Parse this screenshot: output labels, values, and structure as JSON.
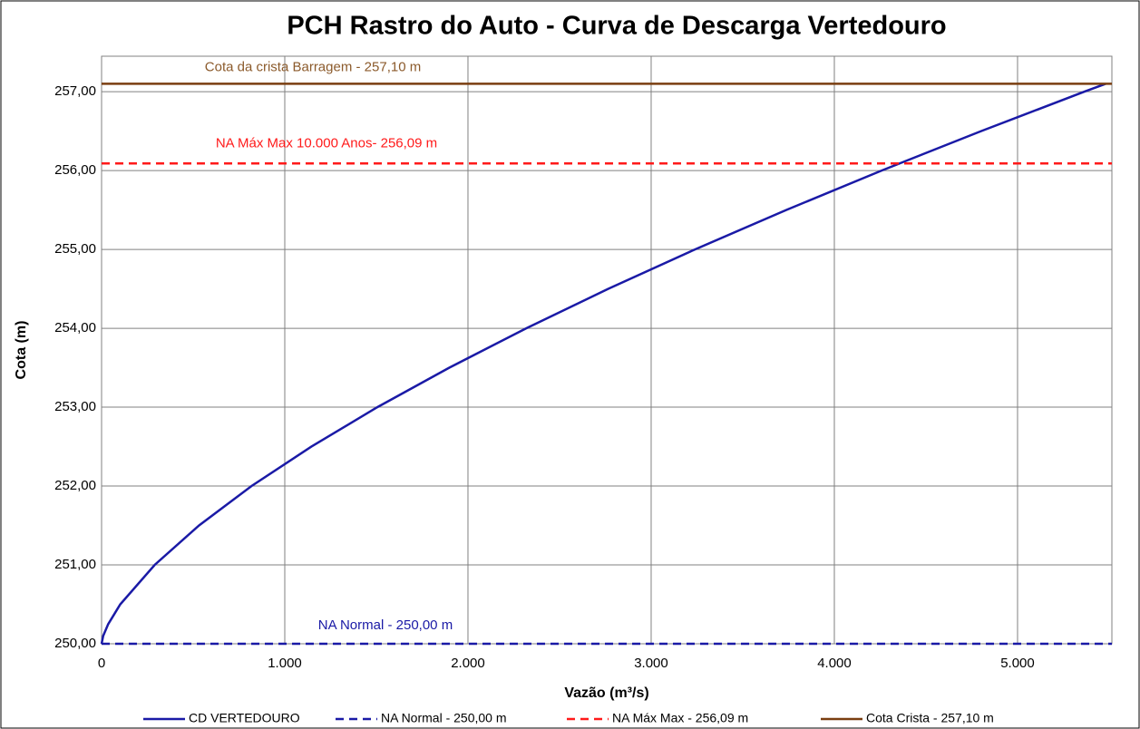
{
  "chart_data": {
    "type": "line",
    "title": "PCH Rastro do Auto - Curva de Descarga Vertedouro",
    "xlabel": "Vazão (m³/s)",
    "ylabel": "Cota (m)",
    "xlim": [
      0,
      5515
    ],
    "ylim": [
      250,
      257.45
    ],
    "xticks": [
      0,
      {
        "value": 1000,
        "label": "1.000"
      },
      {
        "value": 2000,
        "label": "2.000"
      },
      {
        "value": 3000,
        "label": "3.000"
      },
      {
        "value": 4000,
        "label": "4.000"
      },
      {
        "value": 5000,
        "label": "5.000"
      }
    ],
    "yticks": [
      {
        "value": 250,
        "label": "250,00"
      },
      {
        "value": 251,
        "label": "251,00"
      },
      {
        "value": 252,
        "label": "252,00"
      },
      {
        "value": 253,
        "label": "253,00"
      },
      {
        "value": 254,
        "label": "254,00"
      },
      {
        "value": 255,
        "label": "255,00"
      },
      {
        "value": 256,
        "label": "256,00"
      },
      {
        "value": 257,
        "label": "257,00"
      }
    ],
    "grid": true,
    "series": [
      {
        "name": "CD VERTEDOURO",
        "color": "#1a1aa6",
        "dash": false,
        "x": [
          0,
          9,
          36,
          102,
          290,
          532,
          819,
          1145,
          1505,
          1897,
          2318,
          2765,
          3239,
          3737,
          4258,
          4801,
          5365,
          5481
        ],
        "values": [
          250,
          250.1,
          250.25,
          250.5,
          251,
          251.5,
          252,
          252.5,
          253,
          253.5,
          254,
          254.5,
          255,
          255.5,
          256,
          256.5,
          257,
          257.1
        ]
      },
      {
        "name": "NA Normal - 250,00 m",
        "color": "#1a1aa6",
        "dash": true,
        "x": [
          0,
          5515
        ],
        "values": [
          250,
          250
        ]
      },
      {
        "name": "NA Máx Max - 256,09 m",
        "color": "#ff1a1a",
        "dash": true,
        "x": [
          0,
          5515
        ],
        "values": [
          256.09,
          256.09
        ]
      },
      {
        "name": "Cota Crista - 257,10 m",
        "color": "#7a3e10",
        "dash": false,
        "x": [
          0,
          5515
        ],
        "values": [
          257.1,
          257.1
        ]
      }
    ],
    "annotations": [
      {
        "text": "NA Normal - 250,00 m",
        "series": 1,
        "color": "#1a1aa6"
      },
      {
        "text": "NA Máx Max 10.000 Anos- 256,09 m",
        "series": 2,
        "color": "#ff1a1a"
      },
      {
        "text": "Cota da crista Barragem - 257,10 m",
        "series": 3,
        "color": "#8b5a2b"
      }
    ]
  }
}
